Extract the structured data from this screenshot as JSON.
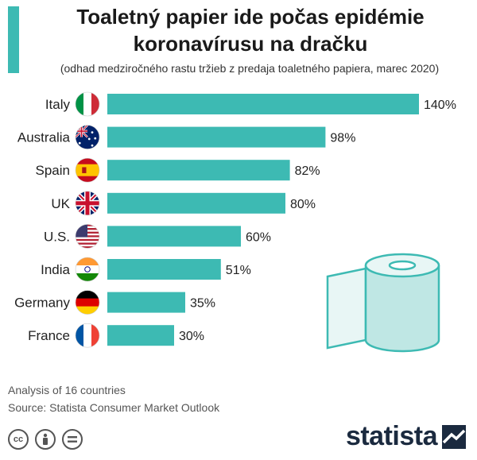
{
  "header": {
    "title_line1": "Toaletný papier ide počas epidémie",
    "title_line2": "koronavírusu na dračku",
    "subtitle": "(odhad medziročného rastu tržieb z predaja toaletného papiera, marec 2020)"
  },
  "colors": {
    "accent": "#3dbab3",
    "bar": "#3dbab3",
    "brand": "#1b2a3f"
  },
  "chart_data": {
    "type": "bar",
    "orientation": "horizontal",
    "categories": [
      "Italy",
      "Australia",
      "Spain",
      "UK",
      "U.S.",
      "India",
      "Germany",
      "France"
    ],
    "values": [
      140,
      98,
      82,
      80,
      60,
      51,
      35,
      30
    ],
    "value_labels": [
      "140%",
      "98%",
      "82%",
      "80%",
      "60%",
      "51%",
      "35%",
      "30%"
    ],
    "flags": [
      "italy-flag-icon",
      "australia-flag-icon",
      "spain-flag-icon",
      "uk-flag-icon",
      "us-flag-icon",
      "india-flag-icon",
      "germany-flag-icon",
      "france-flag-icon"
    ],
    "unit": "%",
    "xlim": [
      0,
      140
    ],
    "grid": false,
    "legend": "none"
  },
  "footer": {
    "note": "Analysis of 16 countries",
    "source": "Source: Statista Consumer Market Outlook"
  },
  "license_icons": [
    "cc-icon",
    "attribution-icon",
    "no-derivatives-icon"
  ],
  "brand": {
    "name": "statista",
    "logo_icon": "statista-logo-icon"
  }
}
